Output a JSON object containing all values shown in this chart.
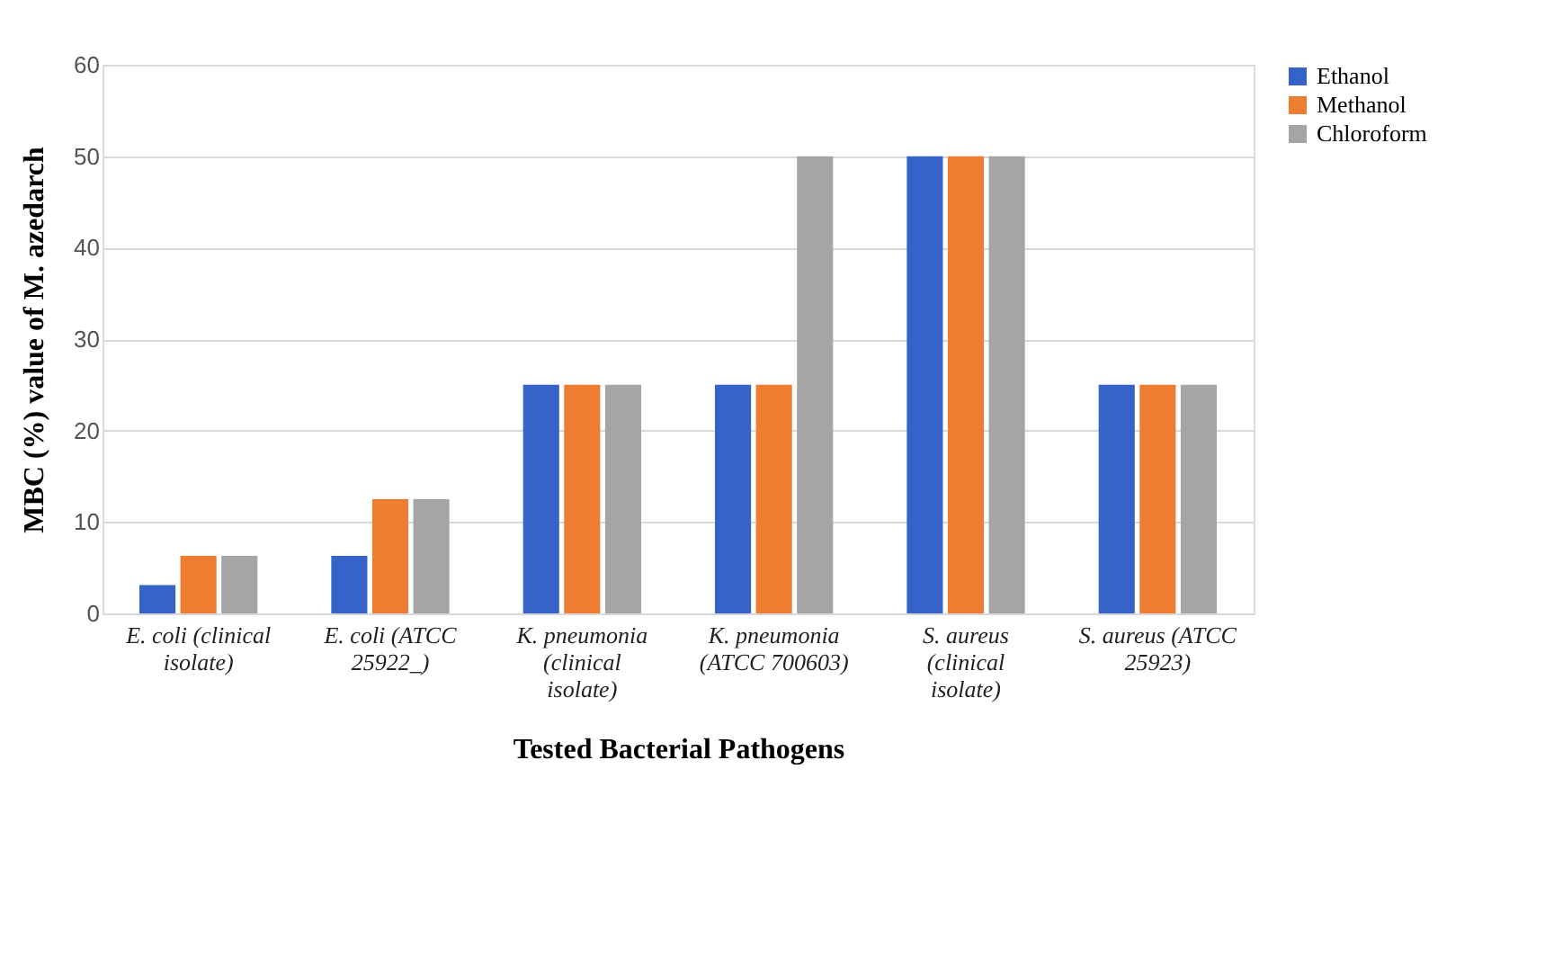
{
  "chart_data": {
    "type": "bar",
    "xlabel": "Tested Bacterial Pathogens",
    "ylabel": "MBC (%) value of M. azedarch",
    "categories": [
      "E. coli (clinical isolate)",
      "E. coli (ATCC 25922_)",
      "K. pneumonia (clinical isolate)",
      "K. pneumonia (ATCC 700603)",
      "S. aureus (clinical isolate)",
      "S. aureus (ATCC 25923)"
    ],
    "series": [
      {
        "name": "Ethanol",
        "color": "#3563c9",
        "values": [
          3.1,
          6.3,
          25,
          25,
          50,
          25
        ]
      },
      {
        "name": "Methanol",
        "color": "#ed7d31",
        "values": [
          6.3,
          12.5,
          25,
          25,
          50,
          25
        ]
      },
      {
        "name": "Chloroform",
        "color": "#a5a5a5",
        "values": [
          6.3,
          12.5,
          25,
          50,
          50,
          25
        ]
      }
    ],
    "ylim": [
      0,
      60
    ],
    "yticks": [
      0,
      10,
      20,
      30,
      40,
      50,
      60
    ],
    "grid": "y",
    "legend": "right"
  }
}
